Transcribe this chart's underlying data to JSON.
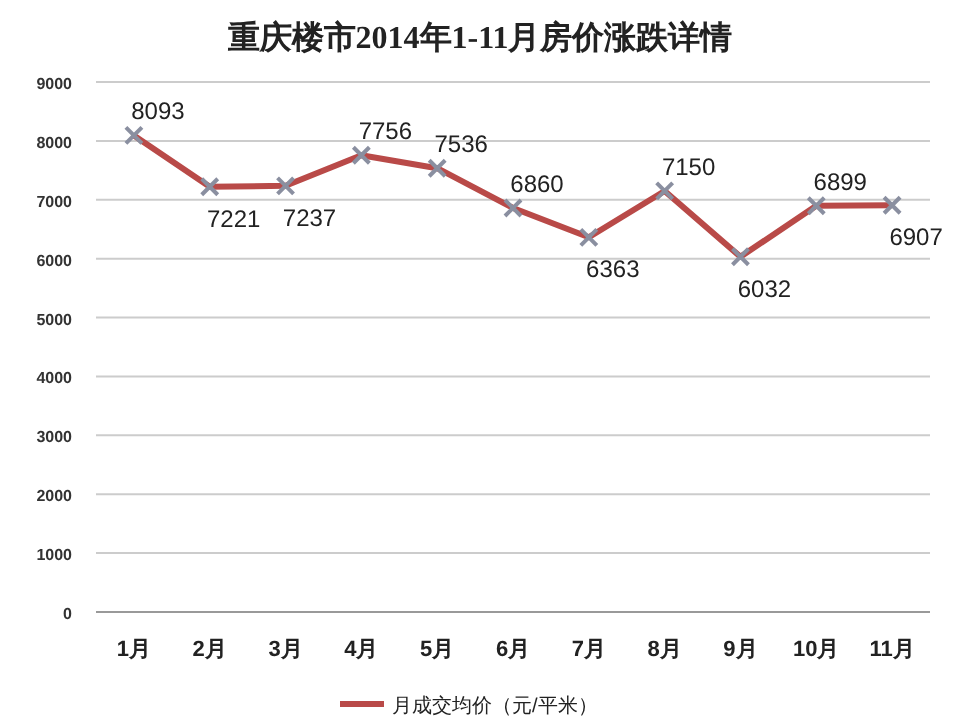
{
  "chart_data": {
    "type": "line",
    "title": "重庆楼市2014年1-11月房价涨跌详情",
    "categories": [
      "1月",
      "2月",
      "3月",
      "4月",
      "5月",
      "6月",
      "7月",
      "8月",
      "9月",
      "10月",
      "11月"
    ],
    "series": [
      {
        "name": "月成交均价（元/平米）",
        "color": "#b94a48",
        "values": [
          8093,
          7221,
          7237,
          7756,
          7536,
          6860,
          6363,
          7150,
          6032,
          6899,
          6907
        ]
      }
    ],
    "ylim": [
      0,
      9000
    ],
    "yticks": [
      0,
      1000,
      2000,
      3000,
      4000,
      5000,
      6000,
      7000,
      8000,
      9000
    ],
    "grid": "y",
    "legend": "bottom",
    "marker": "cross",
    "line_style": "solid",
    "data_labels": true
  }
}
